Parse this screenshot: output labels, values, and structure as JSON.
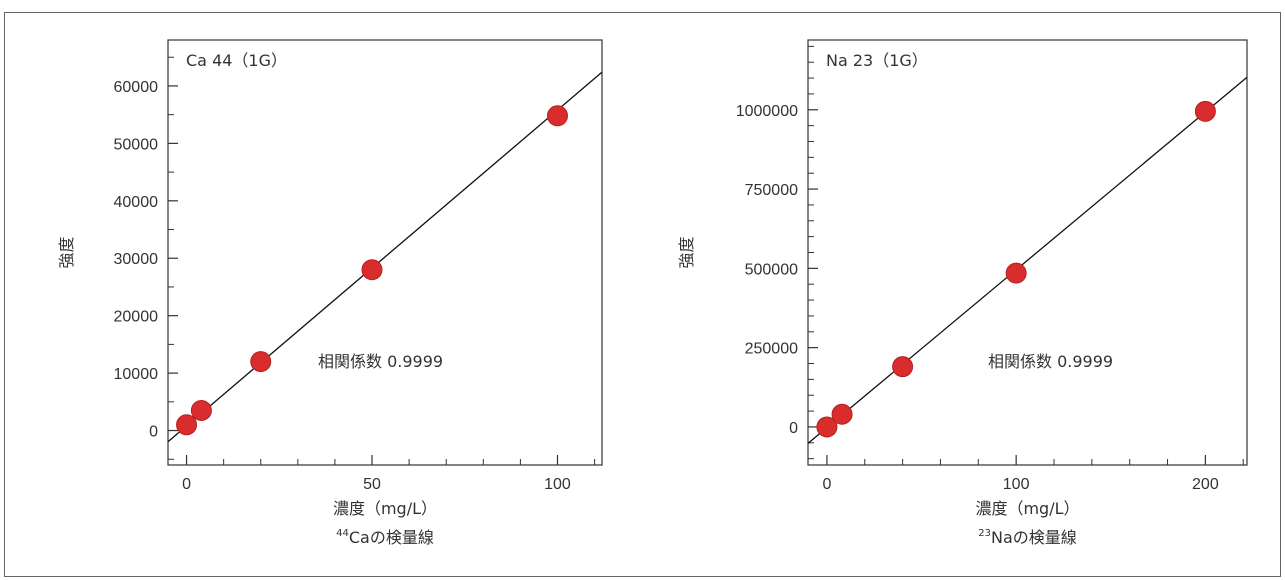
{
  "colors": {
    "point": "#d92c2c",
    "line": "#111111",
    "axis": "#333333",
    "text": "#333333"
  },
  "chart_data": [
    {
      "type": "scatter",
      "panel_label": "Ca 44（1G）",
      "xlabel": "濃度（mg/L）",
      "ylabel": "強度",
      "caption_sup": "44",
      "caption_text": "Caの検量線",
      "annotation": "相関係数 0.9999",
      "xlim": [
        -5,
        112
      ],
      "ylim": [
        -6000,
        68000
      ],
      "x_ticks": [
        0,
        50,
        100
      ],
      "y_ticks": [
        0,
        10000,
        20000,
        30000,
        40000,
        50000,
        60000
      ],
      "x_tick_labels": [
        "0",
        "50",
        "100"
      ],
      "y_tick_labels": [
        "0",
        "10000",
        "20000",
        "30000",
        "40000",
        "50000",
        "60000"
      ],
      "points": [
        {
          "x": 0,
          "y": 1000
        },
        {
          "x": 4,
          "y": 3500
        },
        {
          "x": 20,
          "y": 12000
        },
        {
          "x": 50,
          "y": 28000
        },
        {
          "x": 100,
          "y": 54800
        }
      ],
      "fit_line": {
        "slope": 550,
        "intercept": 800
      }
    },
    {
      "type": "scatter",
      "panel_label": "Na 23（1G）",
      "xlabel": "濃度（mg/L）",
      "ylabel": "強度",
      "caption_sup": "23",
      "caption_text": "Naの検量線",
      "annotation": "相関係数 0.9999",
      "xlim": [
        -10,
        222
      ],
      "ylim": [
        -120000,
        1220000
      ],
      "x_ticks": [
        0,
        100,
        200
      ],
      "y_ticks": [
        0,
        250000,
        500000,
        750000,
        1000000
      ],
      "x_tick_labels": [
        "0",
        "100",
        "200"
      ],
      "y_tick_labels": [
        "0",
        "250000",
        "500000",
        "750000",
        "1000000"
      ],
      "points": [
        {
          "x": 0,
          "y": 0
        },
        {
          "x": 8,
          "y": 40000
        },
        {
          "x": 40,
          "y": 190000
        },
        {
          "x": 100,
          "y": 485000
        },
        {
          "x": 200,
          "y": 995000
        }
      ],
      "fit_line": {
        "slope": 4975,
        "intercept": -2000
      }
    }
  ]
}
